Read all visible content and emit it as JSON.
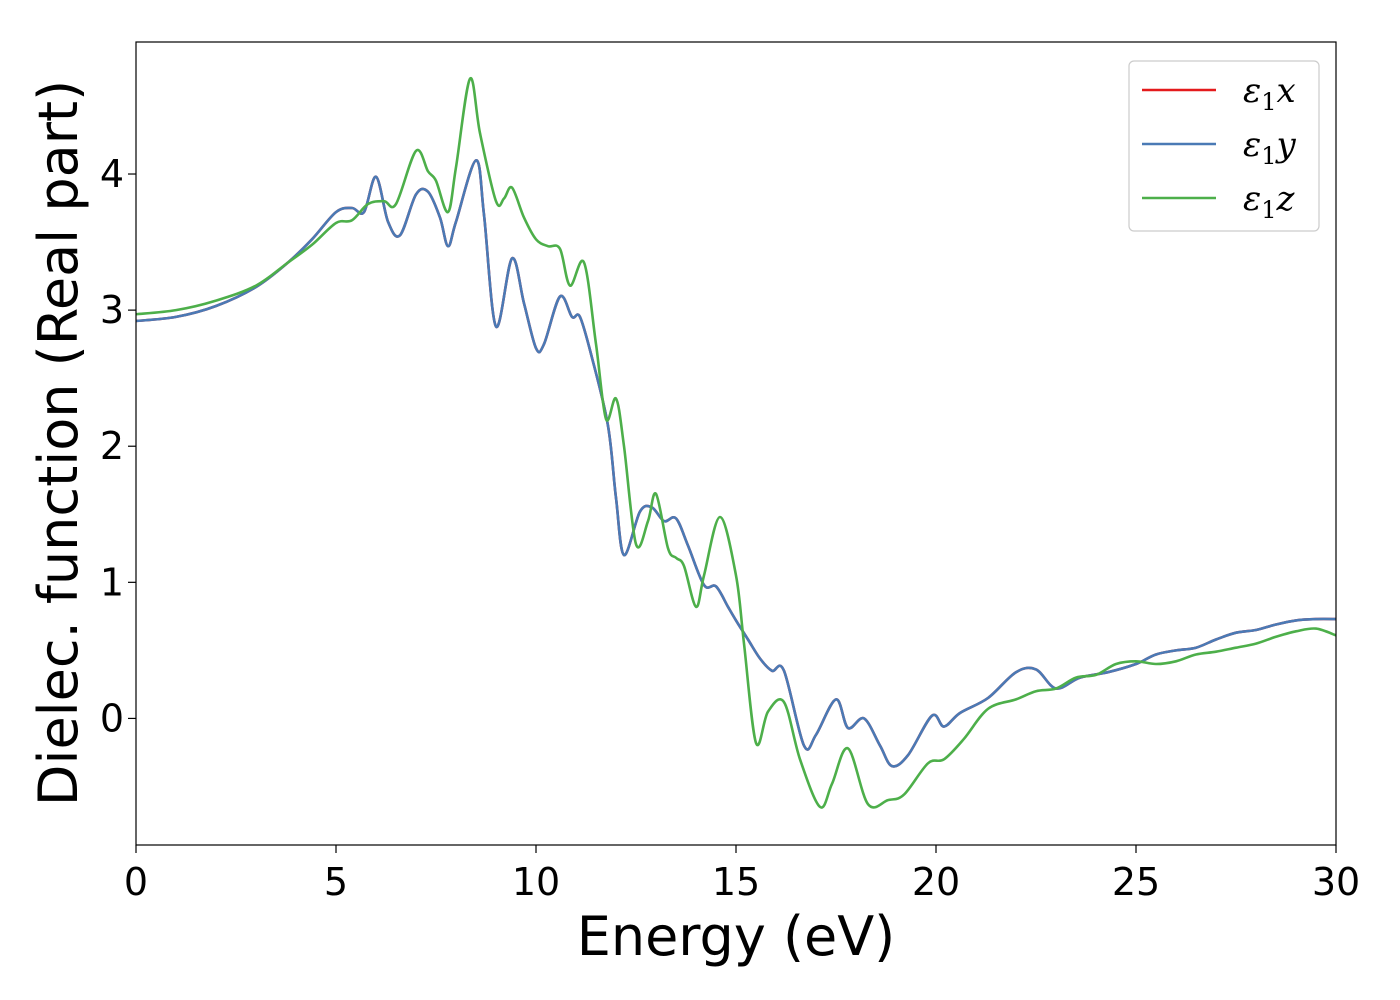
{
  "chart_data": {
    "type": "line",
    "xlabel": "Energy (eV)",
    "ylabel": "Dielec. function (Real part)",
    "xlim": [
      0,
      30
    ],
    "ylim": [
      -0.93,
      4.97
    ],
    "xticks": [
      0,
      5,
      10,
      15,
      20,
      25,
      30
    ],
    "yticks": [
      0,
      1,
      2,
      3,
      4
    ],
    "grid": false,
    "legend_position": "top-right",
    "series": [
      {
        "name": "ε1x",
        "legend_main": "ε",
        "legend_sub": "1",
        "legend_var": "x",
        "color": "#e41a1c",
        "x": [
          0,
          1,
          2,
          3,
          3.8,
          4.4,
          5.0,
          5.4,
          5.7,
          6.0,
          6.3,
          6.6,
          7.0,
          7.3,
          7.6,
          7.8,
          8.0,
          8.5,
          8.7,
          9.0,
          9.4,
          9.7,
          10.0,
          10.2,
          10.6,
          10.9,
          11.1,
          11.4,
          11.8,
          12.0,
          12.2,
          12.6,
          12.9,
          13.2,
          13.5,
          13.8,
          14.2,
          14.5,
          14.8,
          15.0,
          15.3,
          15.6,
          15.9,
          16.2,
          16.7,
          17.0,
          17.5,
          17.8,
          18.2,
          18.6,
          18.9,
          19.3,
          19.9,
          20.2,
          20.6,
          21.3,
          22.0,
          22.5,
          23.0,
          23.6,
          24.3,
          25.0,
          25.5,
          26.0,
          26.5,
          27.0,
          27.5,
          28.0,
          28.5,
          29.0,
          29.5,
          30.0
        ],
        "y": [
          2.92,
          2.95,
          3.03,
          3.17,
          3.35,
          3.52,
          3.72,
          3.75,
          3.72,
          3.98,
          3.65,
          3.55,
          3.85,
          3.87,
          3.68,
          3.47,
          3.65,
          4.1,
          3.7,
          2.88,
          3.38,
          3.05,
          2.72,
          2.75,
          3.1,
          2.95,
          2.95,
          2.65,
          2.15,
          1.62,
          1.2,
          1.52,
          1.55,
          1.45,
          1.47,
          1.27,
          0.98,
          0.97,
          0.82,
          0.72,
          0.58,
          0.44,
          0.35,
          0.35,
          -0.2,
          -0.12,
          0.14,
          -0.07,
          0.0,
          -0.2,
          -0.35,
          -0.27,
          0.02,
          -0.06,
          0.04,
          0.15,
          0.34,
          0.36,
          0.22,
          0.3,
          0.34,
          0.4,
          0.47,
          0.5,
          0.52,
          0.58,
          0.63,
          0.65,
          0.69,
          0.72,
          0.73,
          0.73
        ]
      },
      {
        "name": "ε1y",
        "legend_main": "ε",
        "legend_sub": "1",
        "legend_var": "y",
        "color": "#4a7ab5",
        "x": [
          0,
          1,
          2,
          3,
          3.8,
          4.4,
          5.0,
          5.4,
          5.7,
          6.0,
          6.3,
          6.6,
          7.0,
          7.3,
          7.6,
          7.8,
          8.0,
          8.5,
          8.7,
          9.0,
          9.4,
          9.7,
          10.0,
          10.2,
          10.6,
          10.9,
          11.1,
          11.4,
          11.8,
          12.0,
          12.2,
          12.6,
          12.9,
          13.2,
          13.5,
          13.8,
          14.2,
          14.5,
          14.8,
          15.0,
          15.3,
          15.6,
          15.9,
          16.2,
          16.7,
          17.0,
          17.5,
          17.8,
          18.2,
          18.6,
          18.9,
          19.3,
          19.9,
          20.2,
          20.6,
          21.3,
          22.0,
          22.5,
          23.0,
          23.6,
          24.3,
          25.0,
          25.5,
          26.0,
          26.5,
          27.0,
          27.5,
          28.0,
          28.5,
          29.0,
          29.5,
          30.0
        ],
        "y": [
          2.92,
          2.95,
          3.03,
          3.17,
          3.35,
          3.52,
          3.72,
          3.75,
          3.72,
          3.98,
          3.65,
          3.55,
          3.85,
          3.87,
          3.68,
          3.47,
          3.65,
          4.1,
          3.7,
          2.88,
          3.38,
          3.05,
          2.72,
          2.75,
          3.1,
          2.95,
          2.95,
          2.65,
          2.15,
          1.62,
          1.2,
          1.52,
          1.55,
          1.45,
          1.47,
          1.27,
          0.98,
          0.97,
          0.82,
          0.72,
          0.58,
          0.44,
          0.35,
          0.35,
          -0.2,
          -0.12,
          0.14,
          -0.07,
          0.0,
          -0.2,
          -0.35,
          -0.27,
          0.02,
          -0.06,
          0.04,
          0.15,
          0.34,
          0.36,
          0.22,
          0.3,
          0.34,
          0.4,
          0.47,
          0.5,
          0.52,
          0.58,
          0.63,
          0.65,
          0.69,
          0.72,
          0.73,
          0.73
        ]
      },
      {
        "name": "ε1z",
        "legend_main": "ε",
        "legend_sub": "1",
        "legend_var": "z",
        "color": "#4daf4a",
        "x": [
          0,
          1,
          2,
          3,
          3.8,
          4.4,
          5.0,
          5.4,
          5.8,
          6.2,
          6.5,
          7.0,
          7.3,
          7.5,
          7.8,
          8.0,
          8.35,
          8.6,
          9.0,
          9.2,
          9.4,
          9.7,
          10.0,
          10.3,
          10.6,
          10.85,
          11.2,
          11.5,
          11.75,
          12.0,
          12.2,
          12.5,
          12.8,
          13.0,
          13.3,
          13.5,
          13.7,
          14.0,
          14.2,
          14.6,
          15.0,
          15.2,
          15.5,
          15.8,
          16.2,
          16.6,
          17.1,
          17.4,
          17.8,
          18.3,
          18.8,
          19.2,
          19.8,
          20.2,
          20.7,
          21.3,
          22.0,
          22.5,
          23.0,
          23.5,
          24.0,
          24.5,
          25.0,
          25.5,
          26.0,
          26.5,
          27.0,
          27.5,
          28.0,
          28.5,
          29.0,
          29.5,
          30.0
        ],
        "y": [
          2.97,
          3.0,
          3.07,
          3.18,
          3.35,
          3.48,
          3.64,
          3.66,
          3.78,
          3.8,
          3.78,
          4.17,
          4.02,
          3.95,
          3.72,
          4.05,
          4.7,
          4.3,
          3.8,
          3.82,
          3.9,
          3.68,
          3.52,
          3.47,
          3.45,
          3.18,
          3.35,
          2.75,
          2.2,
          2.35,
          2.0,
          1.28,
          1.45,
          1.65,
          1.25,
          1.18,
          1.12,
          0.82,
          1.05,
          1.48,
          1.05,
          0.55,
          -0.18,
          0.05,
          0.12,
          -0.3,
          -0.65,
          -0.48,
          -0.22,
          -0.63,
          -0.6,
          -0.56,
          -0.33,
          -0.3,
          -0.15,
          0.07,
          0.14,
          0.2,
          0.22,
          0.3,
          0.32,
          0.4,
          0.42,
          0.4,
          0.42,
          0.47,
          0.49,
          0.52,
          0.55,
          0.6,
          0.64,
          0.66,
          0.61
        ]
      }
    ]
  }
}
